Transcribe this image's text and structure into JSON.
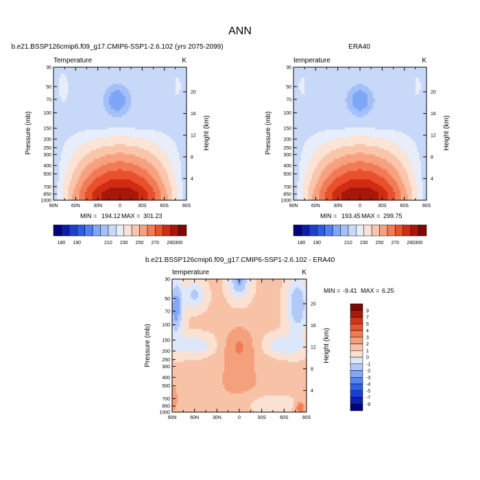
{
  "page_title": "ANN",
  "colors": {
    "abs_palette": [
      "#000080",
      "#0d1ea6",
      "#1f3ed1",
      "#2e5be8",
      "#4f7ff2",
      "#7fa6f7",
      "#a3c0f8",
      "#c8d8f8",
      "#e7eefa",
      "#fbe3d6",
      "#f9c6ac",
      "#f7a27f",
      "#f27a55",
      "#e9512c",
      "#cf2d13",
      "#a8180a",
      "#7d0a05"
    ],
    "diff_palette": [
      "#000080",
      "#0b1fb0",
      "#1a3edc",
      "#2f5fea",
      "#5682f2",
      "#86a7f6",
      "#b2c8f8",
      "#dde7fa",
      "#fbe1d2",
      "#f8c2a6",
      "#f5a07c",
      "#f07c55",
      "#e85530",
      "#d13517",
      "#ab1a08",
      "#7c0b04"
    ]
  },
  "chart_data": [
    {
      "type": "heatmap",
      "panel": "model",
      "title": "b.e21.BSSP126cmip6.f09_g17.CMIP6-SSP1-2.6.102 (yrs 2075-2099)",
      "left_label": "Temperature",
      "units": "K",
      "xlabel": "",
      "ylabel": "Pressure (mb)",
      "right_label": "Height (km)",
      "xlim": [
        90,
        -90
      ],
      "ylim": [
        1000,
        30
      ],
      "x_ticks": [
        {
          "v": 90,
          "label": "90N"
        },
        {
          "v": 60,
          "label": "60N"
        },
        {
          "v": 30,
          "label": "30N"
        },
        {
          "v": 0,
          "label": "0"
        },
        {
          "v": -30,
          "label": "30S"
        },
        {
          "v": -60,
          "label": "60S"
        },
        {
          "v": -90,
          "label": "90S"
        }
      ],
      "y_ticks": [
        30,
        50,
        70,
        100,
        150,
        200,
        250,
        300,
        400,
        500,
        700,
        850,
        1000
      ],
      "height_ticks": [
        4,
        8,
        12,
        16,
        20
      ],
      "stats": {
        "min_label": "MIN = ",
        "min": "194.12",
        "max_label": "MAX = ",
        "max": "301.23"
      },
      "levels": [
        180,
        185,
        190,
        195,
        200,
        205,
        210,
        220,
        230,
        240,
        250,
        260,
        270,
        280,
        290,
        300
      ],
      "colorbar_labels": [
        "180",
        "190",
        "210",
        "230",
        "250",
        "270",
        "290",
        "300"
      ]
    },
    {
      "type": "heatmap",
      "panel": "obs",
      "title": "ERA40",
      "left_label": "temperature",
      "units": "K",
      "xlabel": "",
      "ylabel": "Pressure (mb)",
      "right_label": "Height (km)",
      "xlim": [
        90,
        -90
      ],
      "ylim": [
        1000,
        30
      ],
      "x_ticks": [
        {
          "v": 90,
          "label": "90N"
        },
        {
          "v": 60,
          "label": "60N"
        },
        {
          "v": 30,
          "label": "30N"
        },
        {
          "v": 0,
          "label": "0"
        },
        {
          "v": -30,
          "label": "30S"
        },
        {
          "v": -60,
          "label": "60S"
        },
        {
          "v": -90,
          "label": "90S"
        }
      ],
      "y_ticks": [
        30,
        50,
        70,
        100,
        150,
        200,
        250,
        300,
        400,
        500,
        700,
        850,
        1000
      ],
      "height_ticks": [
        4,
        8,
        12,
        16,
        20
      ],
      "stats": {
        "min_label": "MIN = ",
        "min": "193.45",
        "max_label": "MAX = ",
        "max": "299.75"
      },
      "levels": [
        180,
        185,
        190,
        195,
        200,
        205,
        210,
        220,
        230,
        240,
        250,
        260,
        270,
        280,
        290,
        300
      ],
      "colorbar_labels": [
        "180",
        "190",
        "210",
        "230",
        "250",
        "270",
        "290",
        "300"
      ]
    },
    {
      "type": "heatmap",
      "panel": "diff",
      "title": "b.e21.BSSP126cmip6.f09_g17.CMIP6-SSP1-2.6.102 - ERA40",
      "left_label": "temperature",
      "units": "K",
      "xlabel": "",
      "ylabel": "Pressure (mb)",
      "right_label": "Height (km)",
      "xlim": [
        90,
        -90
      ],
      "ylim": [
        1000,
        30
      ],
      "x_ticks": [
        {
          "v": 90,
          "label": "90N"
        },
        {
          "v": 60,
          "label": "60N"
        },
        {
          "v": 30,
          "label": "30N"
        },
        {
          "v": 0,
          "label": "0"
        },
        {
          "v": -30,
          "label": "30S"
        },
        {
          "v": -60,
          "label": "60S"
        },
        {
          "v": -90,
          "label": "90S"
        }
      ],
      "y_ticks": [
        30,
        50,
        70,
        100,
        150,
        200,
        250,
        300,
        400,
        500,
        700,
        850,
        1000
      ],
      "height_ticks": [
        4,
        8,
        12,
        16,
        20
      ],
      "stats": {
        "min_label": "MIN = ",
        "min": "-9.41",
        "max_label": "MAX = ",
        "max": "6.25"
      },
      "levels": [
        -9,
        -7,
        -5,
        -4,
        -3,
        -2,
        -1,
        0,
        1,
        2,
        3,
        4,
        5,
        7,
        9
      ],
      "colorbar_labels": [
        "9",
        "7",
        "5",
        "4",
        "3",
        "2",
        "1",
        "0",
        "-1",
        "-2",
        "-3",
        "-4",
        "-5",
        "-7",
        "-9"
      ]
    }
  ]
}
